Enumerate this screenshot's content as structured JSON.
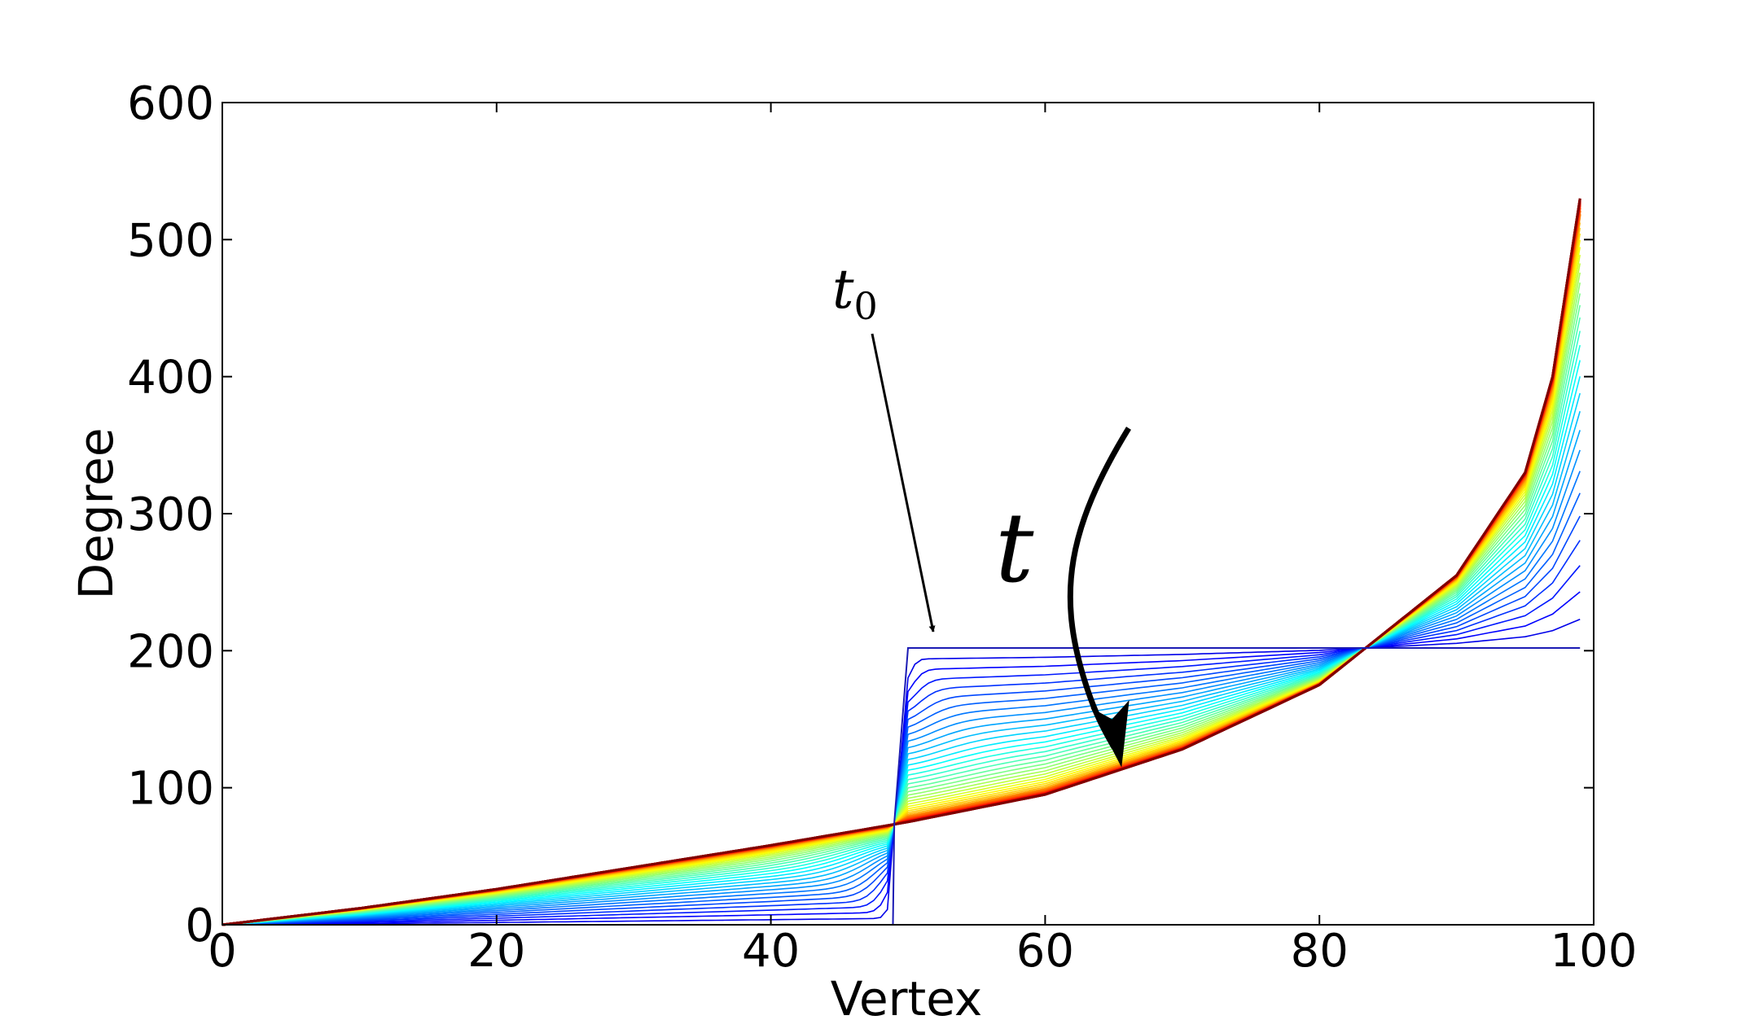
{
  "chart_data": {
    "type": "line",
    "xlabel": "Vertex",
    "ylabel": "Degree",
    "xlim": [
      0,
      100
    ],
    "ylim": [
      0,
      600
    ],
    "x_ticks": [
      "0",
      "20",
      "40",
      "60",
      "80",
      "100"
    ],
    "y_ticks": [
      "0",
      "100",
      "200",
      "300",
      "400",
      "500",
      "600"
    ],
    "grid": false,
    "legend": "none",
    "colormap": "jet",
    "n_curves": 40,
    "initial_state": {
      "description": "step function",
      "x": [
        0,
        48.9,
        49.0,
        50.0,
        99
      ],
      "y": [
        0,
        0,
        75,
        202,
        202
      ]
    },
    "final_state": {
      "x": [
        0,
        10,
        20,
        30,
        40,
        50,
        60,
        70,
        80,
        90,
        95,
        97,
        99
      ],
      "y": [
        0,
        12,
        26,
        42,
        58,
        75,
        95,
        128,
        175,
        255,
        330,
        400,
        530
      ]
    },
    "annotations": {
      "t0": {
        "base": "t",
        "sub": "0",
        "points_to": [
          52,
          202
        ]
      },
      "t": {
        "text": "t"
      }
    },
    "colors": {
      "axis": "#000000",
      "initial_curve": "#1b1bb4",
      "arrow": "#000000"
    }
  }
}
